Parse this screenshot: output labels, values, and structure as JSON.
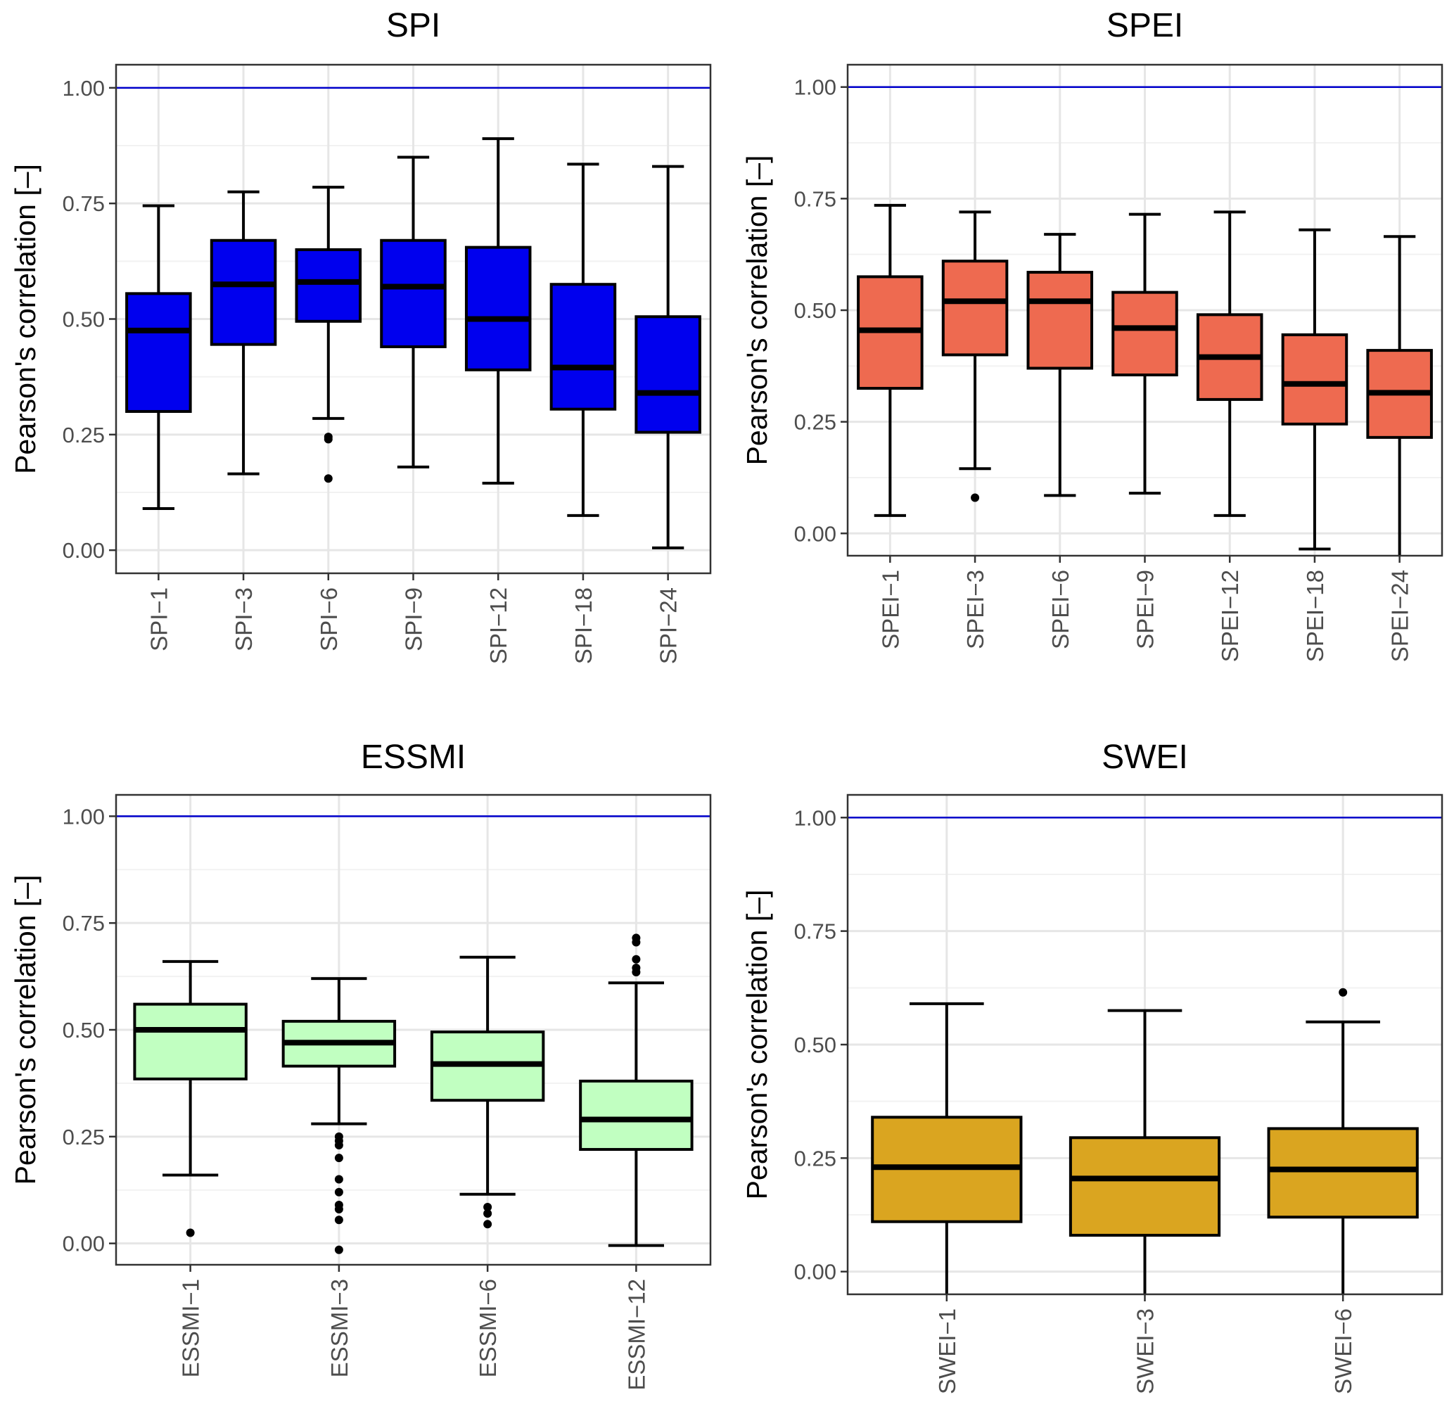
{
  "chart_data": [
    {
      "type": "box",
      "title": "SPI",
      "ylabel": "Pearson's correlation [–]",
      "xlabel": "",
      "ylim": [
        -0.05,
        1.05
      ],
      "yticks": [
        0.0,
        0.25,
        0.5,
        0.75,
        1.0
      ],
      "ytick_labels": [
        "0.00",
        "0.25",
        "0.50",
        "0.75",
        "1.00"
      ],
      "reference_line": {
        "y": 1.0,
        "color": "#0000cc"
      },
      "fill_color": "#0000ee",
      "categories": [
        "SPI−1",
        "SPI−3",
        "SPI−6",
        "SPI−9",
        "SPI−12",
        "SPI−18",
        "SPI−24"
      ],
      "boxes": [
        {
          "min": 0.09,
          "q1": 0.3,
          "median": 0.475,
          "q3": 0.555,
          "max": 0.745,
          "outliers": []
        },
        {
          "min": 0.165,
          "q1": 0.445,
          "median": 0.575,
          "q3": 0.67,
          "max": 0.775,
          "outliers": []
        },
        {
          "min": 0.285,
          "q1": 0.495,
          "median": 0.58,
          "q3": 0.65,
          "max": 0.785,
          "outliers": [
            0.245,
            0.24,
            0.155
          ]
        },
        {
          "min": 0.18,
          "q1": 0.44,
          "median": 0.57,
          "q3": 0.67,
          "max": 0.85,
          "outliers": []
        },
        {
          "min": 0.145,
          "q1": 0.39,
          "median": 0.5,
          "q3": 0.655,
          "max": 0.89,
          "outliers": []
        },
        {
          "min": 0.075,
          "q1": 0.305,
          "median": 0.395,
          "q3": 0.575,
          "max": 0.835,
          "outliers": []
        },
        {
          "min": 0.005,
          "q1": 0.255,
          "median": 0.34,
          "q3": 0.505,
          "max": 0.83,
          "outliers": []
        }
      ]
    },
    {
      "type": "box",
      "title": "SPEI",
      "ylabel": "Pearson's correlation [–]",
      "xlabel": "",
      "ylim": [
        -0.05,
        1.05
      ],
      "yticks": [
        0.0,
        0.25,
        0.5,
        0.75,
        1.0
      ],
      "ytick_labels": [
        "0.00",
        "0.25",
        "0.50",
        "0.75",
        "1.00"
      ],
      "reference_line": {
        "y": 1.0,
        "color": "#0000cc"
      },
      "fill_color": "#ee6a50",
      "categories": [
        "SPEI−1",
        "SPEI−3",
        "SPEI−6",
        "SPEI−9",
        "SPEI−12",
        "SPEI−18",
        "SPEI−24"
      ],
      "boxes": [
        {
          "min": 0.04,
          "q1": 0.325,
          "median": 0.455,
          "q3": 0.575,
          "max": 0.735,
          "outliers": []
        },
        {
          "min": 0.145,
          "q1": 0.4,
          "median": 0.52,
          "q3": 0.61,
          "max": 0.72,
          "outliers": [
            0.08
          ]
        },
        {
          "min": 0.085,
          "q1": 0.37,
          "median": 0.52,
          "q3": 0.585,
          "max": 0.67,
          "outliers": []
        },
        {
          "min": 0.09,
          "q1": 0.355,
          "median": 0.46,
          "q3": 0.54,
          "max": 0.715,
          "outliers": []
        },
        {
          "min": 0.04,
          "q1": 0.3,
          "median": 0.395,
          "q3": 0.49,
          "max": 0.72,
          "outliers": []
        },
        {
          "min": -0.035,
          "q1": 0.245,
          "median": 0.335,
          "q3": 0.445,
          "max": 0.68,
          "outliers": []
        },
        {
          "min": -0.06,
          "q1": 0.215,
          "median": 0.315,
          "q3": 0.41,
          "max": 0.665,
          "outliers": []
        }
      ]
    },
    {
      "type": "box",
      "title": "ESSMI",
      "ylabel": "Pearson's correlation [–]",
      "xlabel": "",
      "ylim": [
        -0.05,
        1.05
      ],
      "yticks": [
        0.0,
        0.25,
        0.5,
        0.75,
        1.0
      ],
      "ytick_labels": [
        "0.00",
        "0.25",
        "0.50",
        "0.75",
        "1.00"
      ],
      "reference_line": {
        "y": 1.0,
        "color": "#0000cc"
      },
      "fill_color": "#c1ffc1",
      "categories": [
        "ESSMI−1",
        "ESSMI−3",
        "ESSMI−6",
        "ESSMI−12"
      ],
      "boxes": [
        {
          "min": 0.16,
          "q1": 0.385,
          "median": 0.5,
          "q3": 0.56,
          "max": 0.66,
          "outliers": [
            0.025
          ]
        },
        {
          "min": 0.28,
          "q1": 0.415,
          "median": 0.47,
          "q3": 0.52,
          "max": 0.62,
          "outliers": [
            0.25,
            0.24,
            0.23,
            0.2,
            0.15,
            0.12,
            0.09,
            0.08,
            0.055,
            -0.015
          ]
        },
        {
          "min": 0.115,
          "q1": 0.335,
          "median": 0.42,
          "q3": 0.495,
          "max": 0.67,
          "outliers": [
            0.085,
            0.07,
            0.045
          ]
        },
        {
          "min": -0.005,
          "q1": 0.22,
          "median": 0.29,
          "q3": 0.38,
          "max": 0.61,
          "outliers": [
            0.715,
            0.705,
            0.665,
            0.645,
            0.635
          ]
        }
      ]
    },
    {
      "type": "box",
      "title": "SWEI",
      "ylabel": "Pearson's correlation [–]",
      "xlabel": "",
      "ylim": [
        -0.05,
        1.05
      ],
      "yticks": [
        0.0,
        0.25,
        0.5,
        0.75,
        1.0
      ],
      "ytick_labels": [
        "0.00",
        "0.25",
        "0.50",
        "0.75",
        "1.00"
      ],
      "reference_line": {
        "y": 1.0,
        "color": "#0000cc"
      },
      "fill_color": "#daa520",
      "categories": [
        "SWEI−1",
        "SWEI−3",
        "SWEI−6"
      ],
      "boxes": [
        {
          "min": -0.06,
          "q1": 0.11,
          "median": 0.23,
          "q3": 0.34,
          "max": 0.59,
          "outliers": []
        },
        {
          "min": -0.06,
          "q1": 0.08,
          "median": 0.205,
          "q3": 0.295,
          "max": 0.575,
          "outliers": []
        },
        {
          "min": -0.06,
          "q1": 0.12,
          "median": 0.225,
          "q3": 0.315,
          "max": 0.55,
          "outliers": [
            0.615
          ]
        }
      ]
    }
  ]
}
